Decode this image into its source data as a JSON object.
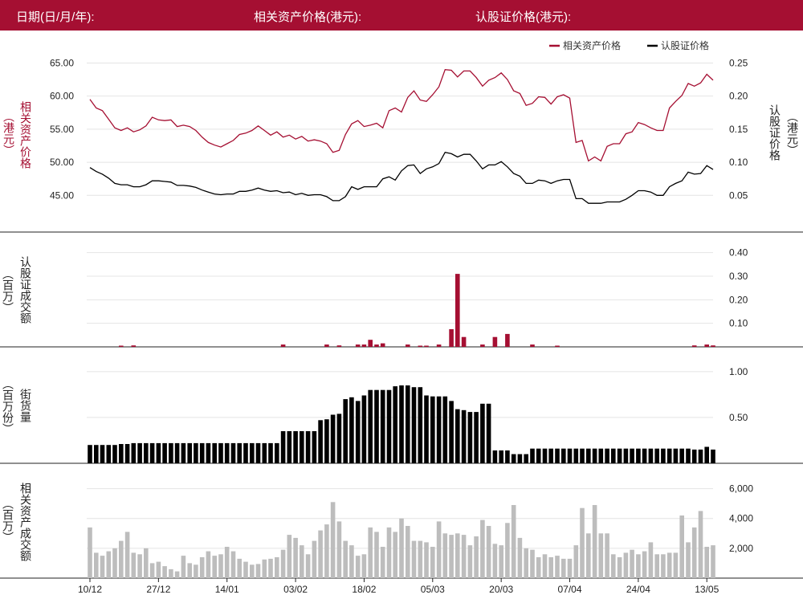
{
  "header": {
    "date_label": "日期(日/月/年):",
    "asset_price_label": "相关资产价格(港元):",
    "warrant_price_label": "认股证价格(港元):"
  },
  "colors": {
    "accent": "#a50f32",
    "warrant": "#000000",
    "asset_turnover": "#bdbdbd",
    "header_bg": "#a50f32"
  },
  "legend": {
    "asset": "相关资产价格",
    "warrant": "认股证价格"
  },
  "axis_titles": {
    "asset_price": "相关资产价格",
    "asset_price_unit": "（港元）",
    "warrant_price": "认股证价格",
    "warrant_price_unit": "（港元）",
    "warrant_turnover": "认股证成交额",
    "warrant_turnover_unit": "（百万）",
    "outstanding": "街货量",
    "outstanding_unit": "（百万份）",
    "asset_turnover": "相关资产成交额",
    "asset_turnover_unit": "（百万）"
  },
  "x_ticks": [
    "10/12",
    "27/12",
    "14/01",
    "03/02",
    "18/02",
    "05/03",
    "20/03",
    "07/04",
    "24/04",
    "13/05"
  ],
  "chart_data": [
    {
      "type": "line",
      "title": "",
      "ylabel_left": "相关资产价格（港元）",
      "ylabel_right": "认股证价格（港元）",
      "ylim_left": [
        42,
        67
      ],
      "ylim_right": [
        0.02,
        0.27
      ],
      "yticks_left": [
        "45.00",
        "50.00",
        "55.00",
        "60.00",
        "65.00"
      ],
      "yticks_right": [
        "0.05",
        "0.10",
        "0.15",
        "0.20",
        "0.25"
      ],
      "legend_position": "top-right",
      "series": [
        {
          "name": "相关资产价格",
          "axis": "left",
          "color": "#a50f32",
          "values": [
            59.5,
            58.2,
            57.8,
            56.5,
            55.2,
            54.8,
            55.2,
            54.6,
            54.9,
            55.5,
            56.8,
            56.4,
            56.3,
            56.4,
            55.4,
            55.6,
            55.4,
            54.8,
            53.8,
            53.0,
            52.6,
            52.3,
            52.8,
            53.3,
            54.2,
            54.4,
            54.8,
            55.5,
            54.8,
            54.1,
            54.6,
            53.8,
            54.1,
            53.5,
            53.9,
            53.2,
            53.4,
            53.2,
            52.8,
            51.5,
            51.8,
            54.2,
            55.8,
            56.3,
            55.4,
            55.6,
            55.9,
            55.2,
            57.8,
            58.2,
            57.6,
            59.8,
            60.8,
            59.4,
            59.2,
            60.2,
            61.4,
            64.0,
            63.9,
            62.9,
            63.8,
            63.8,
            62.8,
            61.5,
            62.4,
            62.8,
            63.5,
            62.5,
            60.8,
            60.4,
            58.6,
            58.9,
            59.9,
            59.8,
            58.8,
            59.9,
            60.2,
            59.7,
            53.0,
            53.3,
            50.2,
            50.8,
            50.2,
            52.4,
            52.8,
            52.8,
            54.3,
            54.6,
            56.0,
            55.7,
            55.2,
            54.8,
            54.8,
            58.2,
            59.2,
            60.1,
            61.9,
            61.5,
            62.0,
            63.3,
            62.4
          ]
        },
        {
          "name": "认股证价格",
          "axis": "right",
          "color": "#000000",
          "values": [
            0.092,
            0.086,
            0.082,
            0.076,
            0.068,
            0.066,
            0.066,
            0.063,
            0.063,
            0.066,
            0.072,
            0.072,
            0.071,
            0.07,
            0.065,
            0.065,
            0.064,
            0.062,
            0.058,
            0.055,
            0.052,
            0.051,
            0.052,
            0.052,
            0.056,
            0.056,
            0.058,
            0.061,
            0.058,
            0.056,
            0.057,
            0.054,
            0.055,
            0.051,
            0.053,
            0.05,
            0.051,
            0.051,
            0.048,
            0.042,
            0.042,
            0.048,
            0.063,
            0.059,
            0.063,
            0.063,
            0.063,
            0.075,
            0.078,
            0.073,
            0.087,
            0.095,
            0.096,
            0.083,
            0.09,
            0.093,
            0.098,
            0.115,
            0.113,
            0.108,
            0.112,
            0.112,
            0.102,
            0.09,
            0.096,
            0.096,
            0.101,
            0.093,
            0.083,
            0.079,
            0.068,
            0.068,
            0.073,
            0.072,
            0.068,
            0.072,
            0.074,
            0.074,
            0.045,
            0.045,
            0.038,
            0.038,
            0.038,
            0.04,
            0.04,
            0.04,
            0.044,
            0.05,
            0.057,
            0.057,
            0.055,
            0.05,
            0.05,
            0.063,
            0.068,
            0.072,
            0.085,
            0.082,
            0.083,
            0.095,
            0.089
          ]
        }
      ]
    },
    {
      "type": "bar",
      "title": "",
      "ylabel": "认股证成交额（百万）",
      "ylim": [
        0,
        0.45
      ],
      "yticks": [
        "0.10",
        "0.20",
        "0.30",
        "0.40"
      ],
      "color": "#a50f32",
      "values": [
        0,
        0,
        0,
        0,
        0,
        0.005,
        0,
        0.006,
        0,
        0,
        0,
        0,
        0,
        0,
        0,
        0,
        0,
        0,
        0,
        0,
        0,
        0,
        0,
        0,
        0,
        0,
        0,
        0,
        0,
        0,
        0,
        0.01,
        0,
        0,
        0,
        0,
        0,
        0,
        0.01,
        0,
        0.006,
        0,
        0,
        0.01,
        0.01,
        0.03,
        0.01,
        0.015,
        0,
        0,
        0,
        0.01,
        0,
        0.005,
        0.005,
        0,
        0.01,
        0,
        0.075,
        0.31,
        0.042,
        0,
        0,
        0.01,
        0,
        0.042,
        0,
        0.055,
        0,
        0,
        0,
        0.01,
        0,
        0,
        0,
        0.005,
        0,
        0,
        0,
        0,
        0,
        0,
        0,
        0,
        0,
        0,
        0,
        0,
        0,
        0,
        0,
        0,
        0,
        0,
        0,
        0,
        0,
        0.006,
        0,
        0.01,
        0.006
      ]
    },
    {
      "type": "bar",
      "title": "",
      "ylabel": "街货量（百万份）",
      "ylim": [
        0,
        1.2
      ],
      "yticks": [
        "0.50",
        "1.00"
      ],
      "color": "#000000",
      "values": [
        0.2,
        0.2,
        0.2,
        0.2,
        0.2,
        0.21,
        0.21,
        0.22,
        0.22,
        0.22,
        0.22,
        0.22,
        0.22,
        0.22,
        0.22,
        0.22,
        0.22,
        0.22,
        0.22,
        0.22,
        0.22,
        0.22,
        0.22,
        0.22,
        0.22,
        0.22,
        0.22,
        0.22,
        0.22,
        0.22,
        0.22,
        0.35,
        0.35,
        0.35,
        0.35,
        0.35,
        0.35,
        0.47,
        0.48,
        0.53,
        0.54,
        0.7,
        0.72,
        0.68,
        0.74,
        0.8,
        0.8,
        0.8,
        0.8,
        0.84,
        0.85,
        0.85,
        0.83,
        0.83,
        0.74,
        0.73,
        0.73,
        0.73,
        0.68,
        0.59,
        0.58,
        0.56,
        0.56,
        0.65,
        0.65,
        0.14,
        0.14,
        0.14,
        0.1,
        0.1,
        0.1,
        0.16,
        0.16,
        0.16,
        0.16,
        0.16,
        0.16,
        0.16,
        0.16,
        0.16,
        0.16,
        0.16,
        0.16,
        0.16,
        0.16,
        0.16,
        0.16,
        0.16,
        0.16,
        0.16,
        0.16,
        0.16,
        0.16,
        0.16,
        0.16,
        0.16,
        0.16,
        0.15,
        0.15,
        0.18,
        0.15
      ]
    },
    {
      "type": "bar",
      "title": "",
      "ylabel": "相关资产成交额（百万）",
      "ylim": [
        0,
        7000
      ],
      "yticks": [
        "2,000",
        "4,000",
        "6,000"
      ],
      "color": "#bdbdbd",
      "values": [
        3400,
        1700,
        1500,
        1800,
        2000,
        2500,
        3100,
        1700,
        1600,
        2000,
        1000,
        1100,
        800,
        600,
        450,
        1500,
        1000,
        900,
        1400,
        1800,
        1500,
        1600,
        2100,
        1800,
        1300,
        1100,
        900,
        950,
        1250,
        1300,
        1400,
        1900,
        2900,
        2700,
        2200,
        1600,
        2500,
        3200,
        3600,
        5100,
        3800,
        2500,
        2200,
        1500,
        1600,
        3400,
        3100,
        2100,
        3400,
        3100,
        4000,
        3500,
        2500,
        2500,
        2400,
        2100,
        3800,
        3000,
        2900,
        3000,
        2900,
        2200,
        2800,
        3900,
        3500,
        2300,
        2200,
        3700,
        4900,
        2700,
        2000,
        1900,
        1400,
        1600,
        1400,
        1500,
        1300,
        1300,
        2200,
        4700,
        3000,
        4900,
        3000,
        3000,
        1600,
        1400,
        1700,
        1900,
        1600,
        1800,
        2400,
        1600,
        1600,
        1700,
        1700,
        4200,
        2400,
        3400,
        4500,
        2100,
        2200
      ]
    }
  ]
}
